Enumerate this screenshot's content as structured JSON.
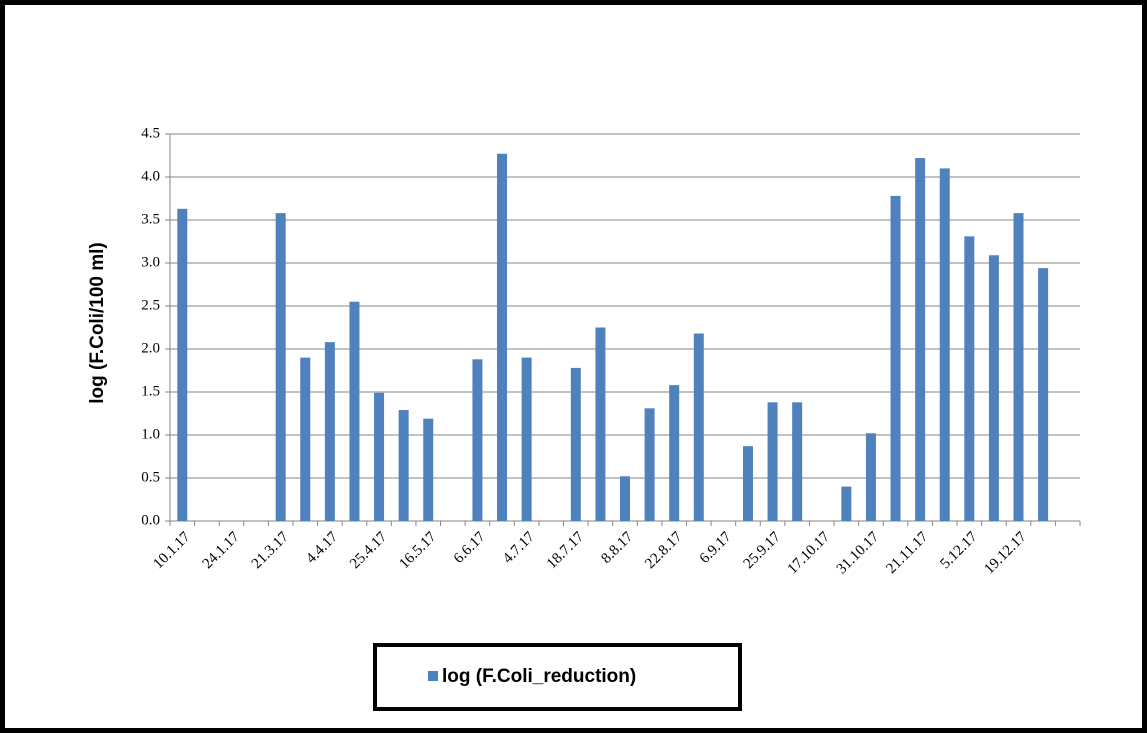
{
  "chart_data": {
    "type": "bar",
    "y_label": "log (F.Coli/100  ml)",
    "categories": [
      "10.1.17",
      null,
      "24.1.17",
      null,
      "21.3.17",
      null,
      "4.4.17",
      null,
      "25.4.17",
      null,
      "16.5.17",
      null,
      "6.6.17",
      null,
      "4.7.17",
      null,
      "18.7.17",
      null,
      "8.8.17",
      null,
      "22.8.17",
      null,
      "6.9.17",
      null,
      "25.9.17",
      null,
      "17.10.17",
      null,
      "31.10.17",
      null,
      "21.11.17",
      null,
      "5.12.17",
      null,
      "19.12.17",
      null,
      null
    ],
    "series": [
      {
        "name": "log (F.Coli_reduction)",
        "color": "#4f81bd",
        "values": [
          3.63,
          null,
          null,
          null,
          3.58,
          1.9,
          2.08,
          2.55,
          1.49,
          1.29,
          1.19,
          null,
          1.88,
          4.27,
          1.9,
          null,
          1.78,
          2.25,
          0.52,
          1.31,
          1.58,
          2.18,
          null,
          0.87,
          1.38,
          1.38,
          null,
          0.4,
          1.02,
          3.78,
          4.22,
          4.1,
          3.31,
          3.09,
          3.58,
          2.94,
          null
        ]
      }
    ],
    "ylim": [
      0,
      4.5
    ],
    "yticks": [
      {
        "value": 0,
        "label": "0.0"
      },
      0.5,
      {
        "value": 1,
        "label": "1.0"
      },
      1.5,
      {
        "value": 2,
        "label": "2.0"
      },
      2.5,
      {
        "value": 3,
        "label": "3.0"
      },
      3.5,
      {
        "value": 4,
        "label": "4.0"
      },
      4.5
    ],
    "grid": true
  }
}
